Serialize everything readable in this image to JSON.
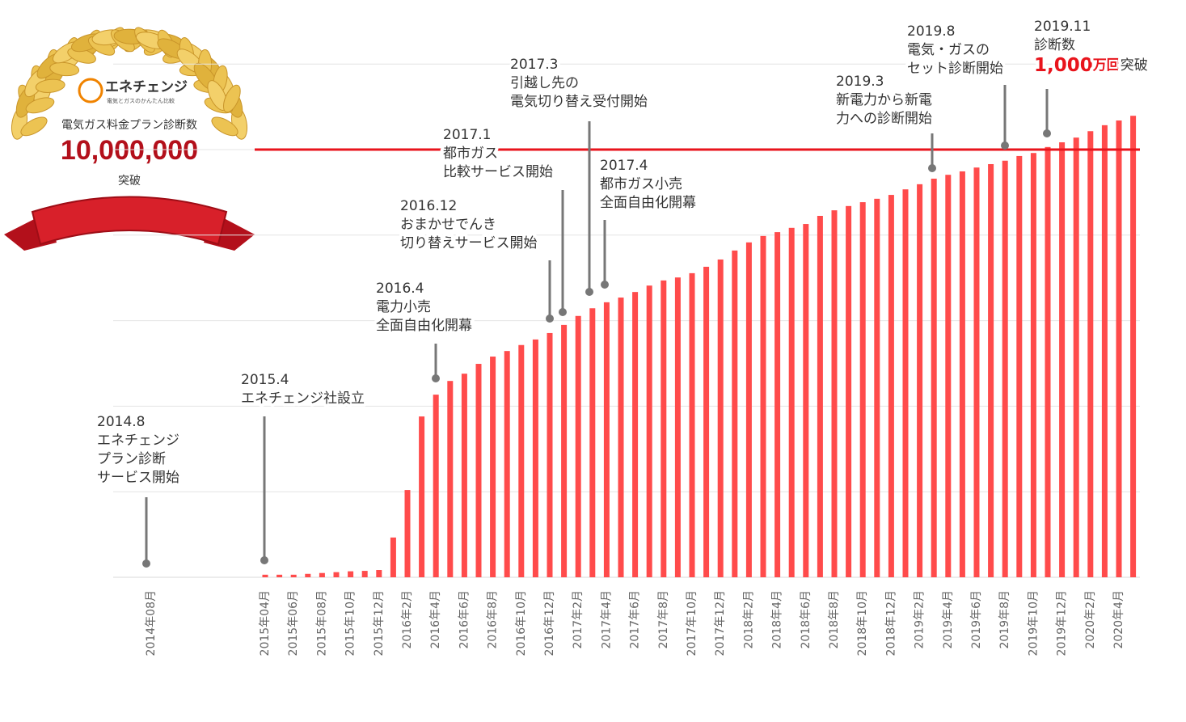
{
  "chart_data": {
    "type": "bar",
    "categories": [
      "2014年08月",
      null,
      null,
      null,
      null,
      null,
      null,
      null,
      "2015年04月",
      null,
      "2015年06月",
      null,
      "2015年08月",
      null,
      "2015年10月",
      null,
      "2015年12月",
      null,
      "2016年2月",
      null,
      "2016年4月",
      null,
      "2016年6月",
      null,
      "2016年8月",
      null,
      "2016年10月",
      null,
      "2016年12月",
      null,
      "2017年2月",
      null,
      "2017年4月",
      null,
      "2017年6月",
      null,
      "2017年8月",
      null,
      "2017年10月",
      null,
      "2017年12月",
      null,
      "2018年2月",
      null,
      "2018年4月",
      null,
      "2018年6月",
      null,
      "2018年8月",
      null,
      "2018年10月",
      null,
      "2018年12月",
      null,
      "2019年2月",
      null,
      "2019年4月",
      null,
      "2019年6月",
      null,
      "2019年8月",
      null,
      "2019年10月",
      null,
      "2019年12月",
      null,
      "2020年2月",
      null,
      "2020年4月",
      null
    ],
    "values": [
      null,
      null,
      null,
      null,
      null,
      null,
      null,
      null,
      60000,
      60000,
      60000,
      80000,
      100000,
      120000,
      140000,
      150000,
      170000,
      930000,
      2040000,
      3760000,
      4270000,
      4590000,
      4760000,
      4990000,
      5160000,
      5290000,
      5430000,
      5560000,
      5710000,
      5900000,
      6110000,
      6290000,
      6430000,
      6540000,
      6670000,
      6820000,
      6940000,
      7010000,
      7110000,
      7260000,
      7430000,
      7640000,
      7830000,
      7980000,
      8070000,
      8170000,
      8260000,
      8450000,
      8580000,
      8680000,
      8770000,
      8850000,
      8940000,
      9070000,
      9190000,
      9320000,
      9410000,
      9490000,
      9580000,
      9660000,
      9740000,
      9850000,
      9920000,
      10060000,
      10170000,
      10280000,
      10430000,
      10570000,
      10680000,
      10790000
    ],
    "color": "#ff4b4b",
    "ylim": [
      0,
      12000000
    ],
    "gridlines": [
      0,
      2000000,
      4000000,
      6000000,
      8000000,
      10000000,
      12000000
    ],
    "grid": true,
    "reference_line": {
      "value": 10000000,
      "label": "10,000,000",
      "color": "#e8141c"
    },
    "badge": {
      "brand": "エネチェンジ",
      "brand_tagline": "電気とガスのかんたん比較",
      "caption": "電気ガス料金プラン診断数",
      "suffix": "突破"
    },
    "annotations": [
      {
        "date": "2014.8",
        "lines": [
          "エネチェンジ",
          "プラン診断",
          "サービス開始"
        ]
      },
      {
        "date": "2015.4",
        "lines": [
          "エネチェンジ社設立"
        ]
      },
      {
        "date": "2016.4",
        "lines": [
          "電力小売",
          "全面自由化開幕"
        ]
      },
      {
        "date": "2016.12",
        "lines": [
          "おまかせでんき",
          "切り替えサービス開始"
        ]
      },
      {
        "date": "2017.1",
        "lines": [
          "都市ガス",
          "比較サービス開始"
        ]
      },
      {
        "date": "2017.3",
        "lines": [
          "引越し先の",
          "電気切り替え受付開始"
        ]
      },
      {
        "date": "2017.4",
        "lines": [
          "都市ガス小売",
          "全面自由化開幕"
        ]
      },
      {
        "date": "2019.3",
        "lines": [
          "新電力から新電",
          "力への診断開始"
        ]
      },
      {
        "date": "2019.8",
        "lines": [
          "電気・ガスの",
          "セット診断開始"
        ]
      },
      {
        "date": "2019.11",
        "lines": [
          "診断数"
        ],
        "count": "1,000",
        "unit": "万回",
        "suffix": "突破"
      }
    ]
  }
}
